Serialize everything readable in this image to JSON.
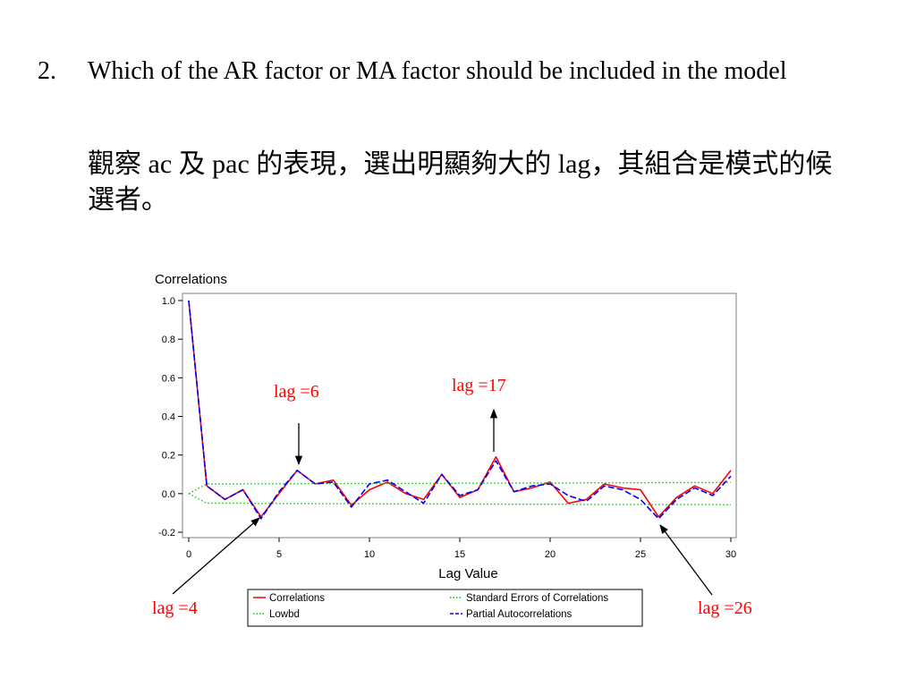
{
  "slide": {
    "item_number": "2.",
    "question": "Which  of the AR factor or MA factor should be included in the model",
    "note": "觀察 ac 及 pac 的表現，選出明顯夠大的 lag，其組合是模式的候選者。"
  },
  "annotations": [
    "lag =6",
    "lag =17",
    "lag =4",
    "lag =26"
  ],
  "colors": {
    "correlations": "#ff0000",
    "partial": "#0000ff",
    "bands": "#00cc00",
    "annotation": "#ff0000"
  },
  "chart_data": {
    "type": "line",
    "title": "Correlations",
    "xlabel": "Lag Value",
    "ylabel": "",
    "xlim": [
      0,
      30
    ],
    "ylim": [
      -0.2,
      1.0
    ],
    "x_ticks": [
      0,
      5,
      10,
      15,
      20,
      25,
      30
    ],
    "y_ticks": [
      1.0,
      0.8,
      0.6,
      0.4,
      0.2,
      0.0,
      -0.2
    ],
    "y_tick_labels": [
      "1.0",
      "0.8",
      "0.6",
      "0.4",
      "0.2",
      "0.0",
      "-0.2"
    ],
    "legend_position": "bottom",
    "x": [
      0,
      1,
      2,
      3,
      4,
      5,
      6,
      7,
      8,
      9,
      10,
      11,
      12,
      13,
      14,
      15,
      16,
      17,
      18,
      19,
      20,
      21,
      22,
      23,
      24,
      25,
      26,
      27,
      28,
      29,
      30
    ],
    "series": [
      {
        "name": "Correlations",
        "style": "solid",
        "values": [
          1.0,
          0.04,
          -0.03,
          0.02,
          -0.12,
          0.0,
          0.12,
          0.05,
          0.07,
          -0.06,
          0.02,
          0.06,
          0.0,
          -0.03,
          0.1,
          -0.02,
          0.02,
          0.19,
          0.01,
          0.03,
          0.06,
          -0.05,
          -0.03,
          0.05,
          0.03,
          0.02,
          -0.12,
          -0.02,
          0.04,
          0.0,
          0.12
        ]
      },
      {
        "name": "Standard Errors of Correlations",
        "style": "dotted",
        "values": [
          0.0,
          0.05,
          0.05,
          0.05,
          0.051,
          0.051,
          0.051,
          0.052,
          0.052,
          0.052,
          0.052,
          0.053,
          0.053,
          0.053,
          0.053,
          0.054,
          0.054,
          0.054,
          0.055,
          0.055,
          0.055,
          0.055,
          0.056,
          0.056,
          0.056,
          0.056,
          0.057,
          0.057,
          0.057,
          0.057,
          0.058
        ]
      },
      {
        "name": "Lowbd",
        "style": "dotted",
        "values": [
          0.0,
          -0.05,
          -0.05,
          -0.05,
          -0.051,
          -0.051,
          -0.051,
          -0.052,
          -0.052,
          -0.052,
          -0.052,
          -0.053,
          -0.053,
          -0.053,
          -0.053,
          -0.054,
          -0.054,
          -0.054,
          -0.055,
          -0.055,
          -0.055,
          -0.055,
          -0.056,
          -0.056,
          -0.056,
          -0.056,
          -0.057,
          -0.057,
          -0.057,
          -0.057,
          -0.058
        ]
      },
      {
        "name": "Partial Autocorrelations",
        "style": "dashed",
        "values": [
          1.0,
          0.04,
          -0.03,
          0.02,
          -0.13,
          0.01,
          0.12,
          0.05,
          0.06,
          -0.07,
          0.05,
          0.07,
          0.01,
          -0.05,
          0.1,
          -0.01,
          0.02,
          0.17,
          0.01,
          0.04,
          0.05,
          -0.01,
          -0.04,
          0.04,
          0.02,
          -0.03,
          -0.13,
          -0.03,
          0.03,
          -0.01,
          0.09
        ]
      }
    ]
  }
}
